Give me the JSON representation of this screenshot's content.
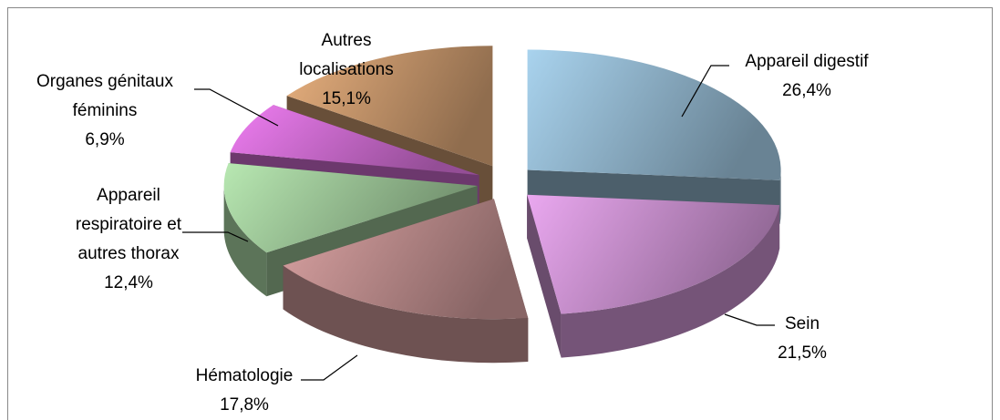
{
  "chart_data": {
    "type": "pie",
    "categories": [
      "Appareil digestif",
      "Sein",
      "Hématologie",
      "Appareil respiratoire et autres thorax",
      "Organes génitaux féminins",
      "Autres localisations"
    ],
    "values": [
      26.4,
      21.5,
      17.8,
      12.4,
      6.9,
      15.1
    ],
    "value_labels": [
      "26,4%",
      "21,5%",
      "17,8%",
      "12,4%",
      "6,9%",
      "15,1%"
    ],
    "colors": [
      "#a9d3ee",
      "#eaa8f0",
      "#dba3a3",
      "#b8e8b2",
      "#ef7df2",
      "#e8b07e"
    ]
  }
}
